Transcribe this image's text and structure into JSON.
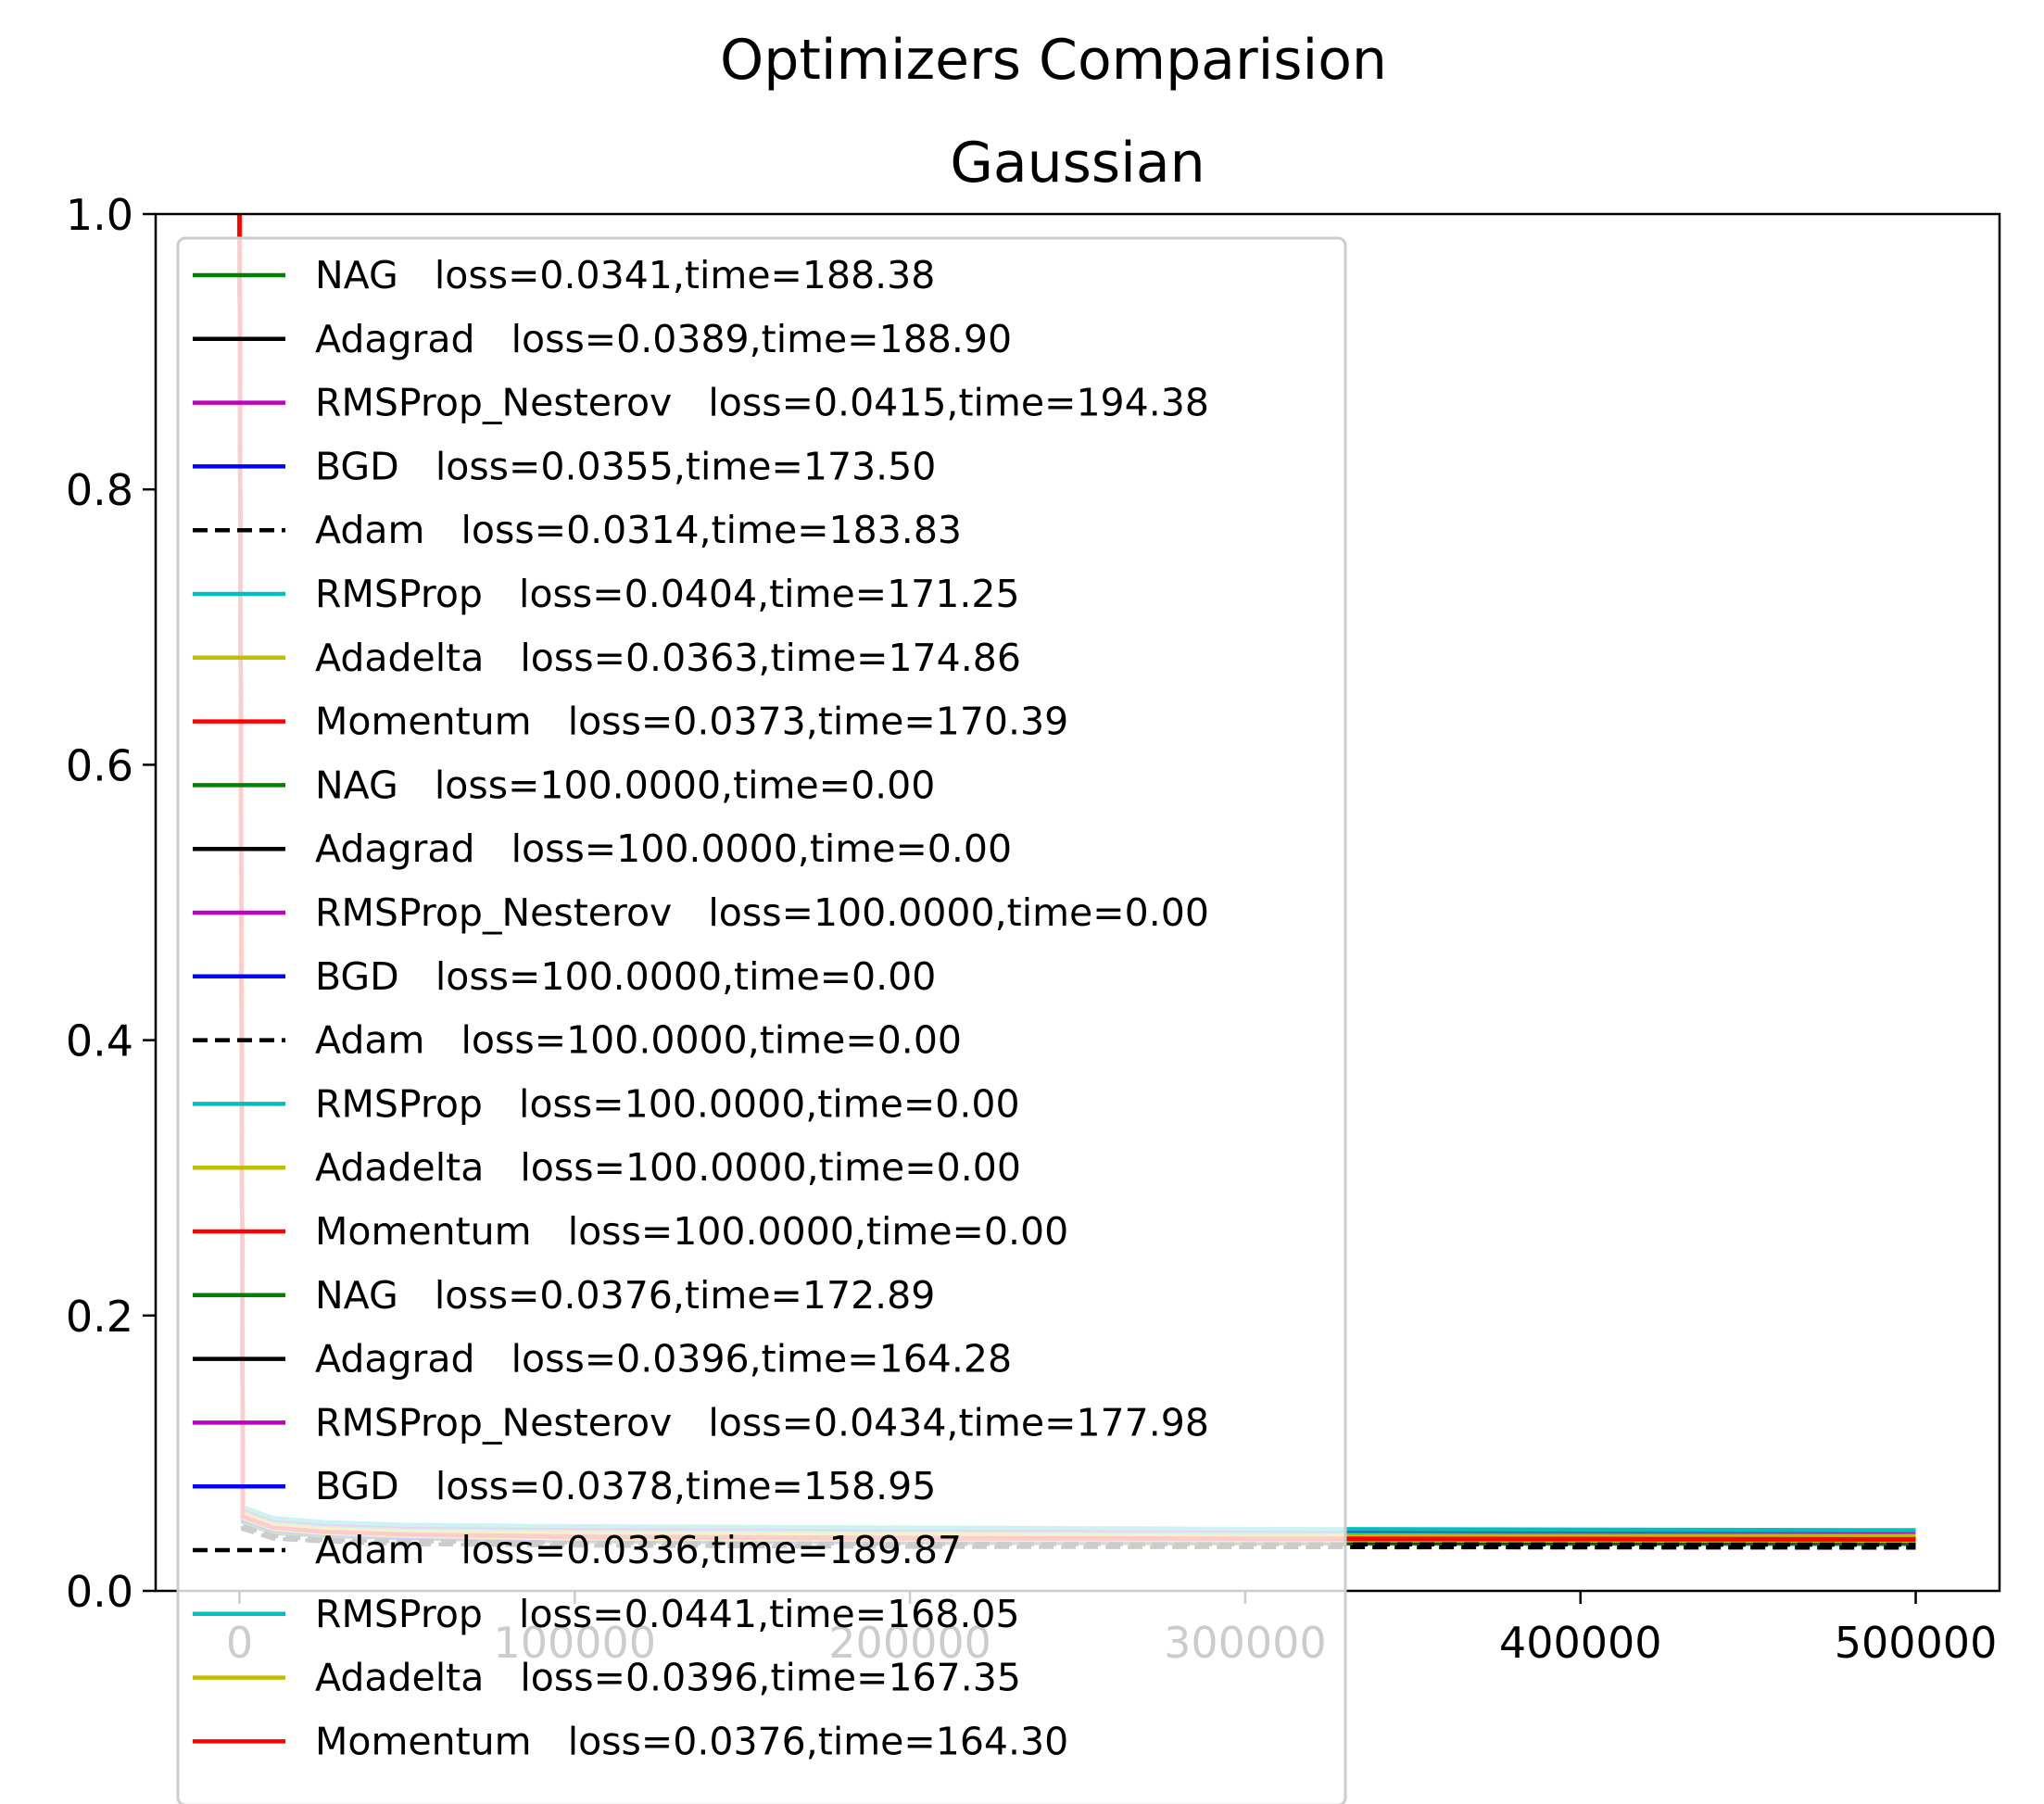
{
  "chart_data": {
    "type": "line",
    "title": "Optimizers Comparision",
    "subtitle": "Gaussian",
    "xlabel": "",
    "ylabel": "",
    "xlim": [
      -25000,
      525000
    ],
    "ylim": [
      0,
      1.0
    ],
    "x_ticks": [
      0,
      100000,
      200000,
      300000,
      400000,
      500000
    ],
    "y_ticks": [
      0.0,
      0.2,
      0.4,
      0.6,
      0.8,
      1.0
    ],
    "x_tick_labels": [
      "0",
      "100000",
      "200000",
      "300000",
      "400000",
      "500000"
    ],
    "y_tick_labels": [
      "0.0",
      "0.2",
      "0.4",
      "0.6",
      "0.8",
      "1.0"
    ],
    "grid": false,
    "legend_position": "upper-left",
    "series": [
      {
        "name": "NAG   loss=0.0341,time=188.38",
        "color": "#008000",
        "dash": false,
        "x": [
          0,
          1000,
          10000,
          25000,
          50000,
          100000,
          200000,
          300000,
          400000,
          500000
        ],
        "y": [
          1.0,
          0.05,
          0.042,
          0.04,
          0.038,
          0.036,
          0.035,
          0.0345,
          0.0343,
          0.0341
        ]
      },
      {
        "name": "Adagrad   loss=0.0389,time=188.90",
        "color": "#000000",
        "dash": false,
        "x": [
          0,
          1000,
          10000,
          25000,
          50000,
          100000,
          200000,
          300000,
          400000,
          500000
        ],
        "y": [
          1.0,
          0.055,
          0.047,
          0.044,
          0.042,
          0.041,
          0.04,
          0.0395,
          0.0392,
          0.0389
        ]
      },
      {
        "name": "RMSProp_Nesterov   loss=0.0415,time=194.38",
        "color": "#bf00bf",
        "dash": false,
        "x": [
          0,
          1000,
          10000,
          25000,
          50000,
          100000,
          200000,
          300000,
          400000,
          500000
        ],
        "y": [
          1.0,
          0.058,
          0.05,
          0.047,
          0.045,
          0.044,
          0.043,
          0.042,
          0.0418,
          0.0415
        ]
      },
      {
        "name": "BGD   loss=0.0355,time=173.50",
        "color": "#0000ff",
        "dash": false,
        "x": [
          0,
          1000,
          10000,
          25000,
          50000,
          100000,
          200000,
          300000,
          400000,
          500000
        ],
        "y": [
          1.0,
          0.052,
          0.044,
          0.041,
          0.039,
          0.037,
          0.0362,
          0.0358,
          0.0357,
          0.0355
        ]
      },
      {
        "name": "Adam   loss=0.0314,time=183.83",
        "color": "#000000",
        "dash": true,
        "x": [
          0,
          1000,
          10000,
          25000,
          50000,
          100000,
          200000,
          300000,
          400000,
          500000
        ],
        "y": [
          1.0,
          0.045,
          0.038,
          0.036,
          0.034,
          0.033,
          0.032,
          0.0318,
          0.0316,
          0.0314
        ]
      },
      {
        "name": "RMSProp   loss=0.0404,time=171.25",
        "color": "#00bfbf",
        "dash": false,
        "x": [
          0,
          1000,
          10000,
          25000,
          50000,
          100000,
          200000,
          300000,
          400000,
          500000
        ],
        "y": [
          1.0,
          0.057,
          0.049,
          0.046,
          0.044,
          0.043,
          0.042,
          0.041,
          0.0407,
          0.0404
        ]
      },
      {
        "name": "Adadelta   loss=0.0363,time=174.86",
        "color": "#bfbf00",
        "dash": false,
        "x": [
          0,
          1000,
          10000,
          25000,
          50000,
          100000,
          200000,
          300000,
          400000,
          500000
        ],
        "y": [
          1.0,
          0.053,
          0.045,
          0.042,
          0.04,
          0.038,
          0.037,
          0.0367,
          0.0365,
          0.0363
        ]
      },
      {
        "name": "Momentum   loss=0.0373,time=170.39",
        "color": "#ff0000",
        "dash": false,
        "x": [
          0,
          1000,
          10000,
          25000,
          50000,
          100000,
          200000,
          300000,
          400000,
          500000
        ],
        "y": [
          1.0,
          0.054,
          0.046,
          0.043,
          0.041,
          0.039,
          0.038,
          0.0377,
          0.0375,
          0.0373
        ]
      },
      {
        "name": "NAG   loss=100.0000,time=0.00",
        "color": "#008000",
        "dash": false,
        "x": [],
        "y": []
      },
      {
        "name": "Adagrad   loss=100.0000,time=0.00",
        "color": "#000000",
        "dash": false,
        "x": [],
        "y": []
      },
      {
        "name": "RMSProp_Nesterov   loss=100.0000,time=0.00",
        "color": "#bf00bf",
        "dash": false,
        "x": [],
        "y": []
      },
      {
        "name": "BGD   loss=100.0000,time=0.00",
        "color": "#0000ff",
        "dash": false,
        "x": [],
        "y": []
      },
      {
        "name": "Adam   loss=100.0000,time=0.00",
        "color": "#000000",
        "dash": true,
        "x": [],
        "y": []
      },
      {
        "name": "RMSProp   loss=100.0000,time=0.00",
        "color": "#00bfbf",
        "dash": false,
        "x": [],
        "y": []
      },
      {
        "name": "Adadelta   loss=100.0000,time=0.00",
        "color": "#bfbf00",
        "dash": false,
        "x": [],
        "y": []
      },
      {
        "name": "Momentum   loss=100.0000,time=0.00",
        "color": "#ff0000",
        "dash": false,
        "x": [],
        "y": []
      },
      {
        "name": "NAG   loss=0.0376,time=172.89",
        "color": "#008000",
        "dash": false,
        "x": [
          0,
          1000,
          10000,
          25000,
          50000,
          100000,
          200000,
          300000,
          400000,
          500000
        ],
        "y": [
          1.0,
          0.054,
          0.046,
          0.043,
          0.041,
          0.0395,
          0.0385,
          0.038,
          0.0378,
          0.0376
        ]
      },
      {
        "name": "Adagrad   loss=0.0396,time=164.28",
        "color": "#000000",
        "dash": false,
        "x": [
          0,
          1000,
          10000,
          25000,
          50000,
          100000,
          200000,
          300000,
          400000,
          500000
        ],
        "y": [
          1.0,
          0.056,
          0.048,
          0.045,
          0.043,
          0.042,
          0.041,
          0.04,
          0.0398,
          0.0396
        ]
      },
      {
        "name": "RMSProp_Nesterov   loss=0.0434,time=177.98",
        "color": "#bf00bf",
        "dash": false,
        "x": [
          0,
          1000,
          10000,
          25000,
          50000,
          100000,
          200000,
          300000,
          400000,
          500000
        ],
        "y": [
          1.0,
          0.06,
          0.052,
          0.049,
          0.047,
          0.046,
          0.045,
          0.044,
          0.0437,
          0.0434
        ]
      },
      {
        "name": "BGD   loss=0.0378,time=158.95",
        "color": "#0000ff",
        "dash": false,
        "x": [
          0,
          1000,
          10000,
          25000,
          50000,
          100000,
          200000,
          300000,
          400000,
          500000
        ],
        "y": [
          1.0,
          0.054,
          0.046,
          0.043,
          0.041,
          0.0397,
          0.0387,
          0.0382,
          0.038,
          0.0378
        ]
      },
      {
        "name": "Adam   loss=0.0336,time=189.87",
        "color": "#000000",
        "dash": true,
        "x": [
          0,
          1000,
          10000,
          25000,
          50000,
          100000,
          200000,
          300000,
          400000,
          500000
        ],
        "y": [
          1.0,
          0.047,
          0.04,
          0.037,
          0.036,
          0.035,
          0.0342,
          0.0339,
          0.0337,
          0.0336
        ]
      },
      {
        "name": "RMSProp   loss=0.0441,time=168.05",
        "color": "#00bfbf",
        "dash": false,
        "x": [
          0,
          1000,
          10000,
          25000,
          50000,
          100000,
          200000,
          300000,
          400000,
          500000
        ],
        "y": [
          1.0,
          0.061,
          0.053,
          0.05,
          0.048,
          0.047,
          0.046,
          0.045,
          0.0445,
          0.0441
        ]
      },
      {
        "name": "Adadelta   loss=0.0396,time=167.35",
        "color": "#bfbf00",
        "dash": false,
        "x": [
          0,
          1000,
          10000,
          25000,
          50000,
          100000,
          200000,
          300000,
          400000,
          500000
        ],
        "y": [
          1.0,
          0.056,
          0.048,
          0.045,
          0.043,
          0.042,
          0.041,
          0.04,
          0.0398,
          0.0396
        ]
      },
      {
        "name": "Momentum   loss=0.0376,time=164.30",
        "color": "#ff0000",
        "dash": false,
        "x": [
          0,
          1000,
          10000,
          25000,
          50000,
          100000,
          200000,
          300000,
          400000,
          500000
        ],
        "y": [
          1.0,
          0.054,
          0.046,
          0.043,
          0.041,
          0.0395,
          0.0385,
          0.038,
          0.0378,
          0.0376
        ]
      }
    ]
  }
}
